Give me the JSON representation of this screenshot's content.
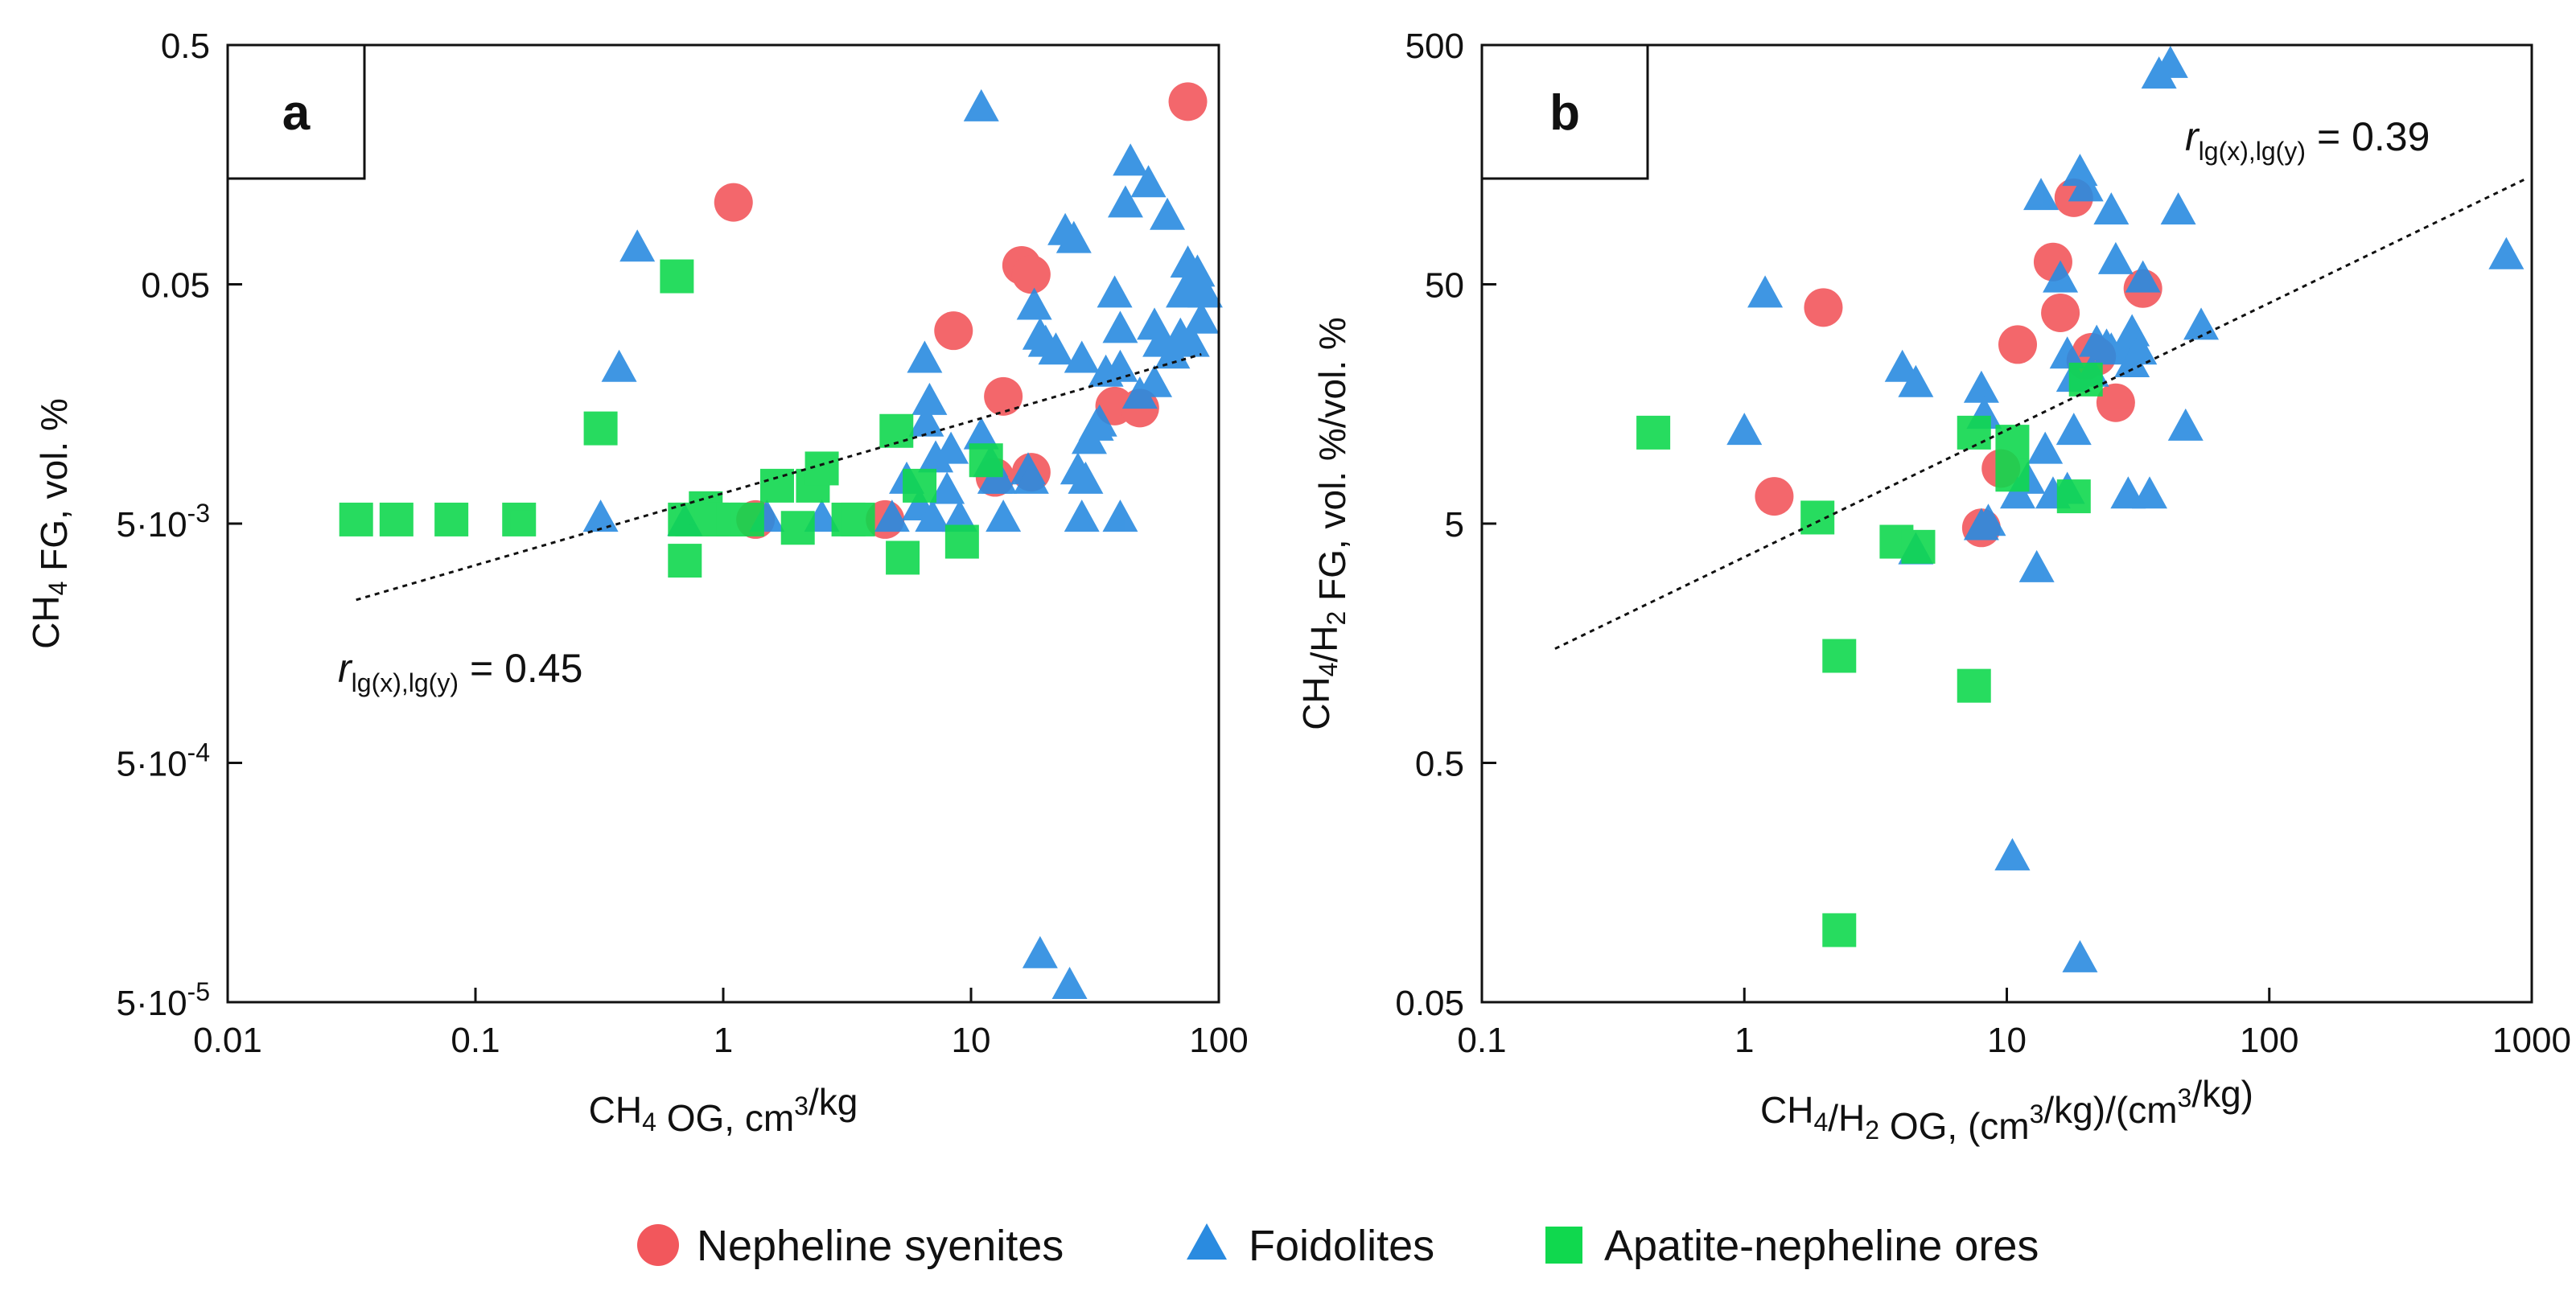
{
  "legend": [
    {
      "label": "Nepheline syenites",
      "marker": "circle",
      "color": "#f2575c"
    },
    {
      "label": "Foidolites",
      "marker": "triangle",
      "color": "#2a8be0"
    },
    {
      "label": "Apatite-nepheline ores",
      "marker": "square",
      "color": "#10d84e"
    }
  ],
  "chart_data": [
    {
      "panel": "a",
      "type": "scatter",
      "xscale": "log",
      "yscale": "log",
      "xlim": [
        0.01,
        100
      ],
      "ylim": [
        5e-05,
        0.5
      ],
      "xlabel": "CH4 OG, cm3/kg",
      "ylabel": "CH4 FG, vol. %",
      "xticks": [
        {
          "value": 0.01,
          "label": "0.01"
        },
        {
          "value": 0.1,
          "label": "0.1"
        },
        {
          "value": 1,
          "label": "1"
        },
        {
          "value": 10,
          "label": "10"
        },
        {
          "value": 100,
          "label": "100"
        }
      ],
      "yticks": [
        {
          "value": 5e-05,
          "label": "5·10-5"
        },
        {
          "value": 0.0005,
          "label": "5·10-4"
        },
        {
          "value": 0.005,
          "label": "5·10-3"
        },
        {
          "value": 0.05,
          "label": "0.05"
        },
        {
          "value": 0.5,
          "label": "0.5"
        }
      ],
      "annotation": {
        "r_label": "r",
        "r_subscript": "lg(x),lg(y)",
        "r_value": "= 0.45"
      },
      "trendline": {
        "x": [
          0.033,
          85
        ],
        "y": [
          0.0024,
          0.0255
        ]
      },
      "series": [
        {
          "name": "Nepheline syenites",
          "x": [
            1.1,
            8.5,
            16,
            17.5,
            13.5,
            4.5,
            1.35,
            12.5,
            17.5,
            38,
            48,
            75
          ],
          "y": [
            0.11,
            0.032,
            0.06,
            0.055,
            0.017,
            0.0052,
            0.0052,
            0.0078,
            0.0082,
            0.0155,
            0.0152,
            0.29
          ]
        },
        {
          "name": "Foidolites",
          "x": [
            11,
            0.45,
            0.38,
            0.32,
            0.7,
            1.5,
            2.5,
            4.8,
            6.2,
            6.6,
            7.2,
            6.5,
            6.8,
            8,
            9,
            11,
            12,
            12.5,
            13.5,
            17,
            18,
            19,
            20,
            17.5,
            22,
            24,
            26,
            27,
            28,
            29,
            30,
            32,
            35,
            38,
            40,
            42,
            44,
            48,
            52,
            55,
            58,
            62,
            65,
            70,
            72,
            75,
            78,
            80,
            82,
            85,
            88,
            55,
            40,
            33,
            13,
            7,
            5.5,
            8.3,
            19,
            25,
            28,
            40
          ],
          "y": [
            0.27,
            0.07,
            0.022,
            0.0052,
            0.005,
            0.0052,
            0.0052,
            0.0052,
            0.0058,
            0.013,
            0.0092,
            0.024,
            0.016,
            0.0068,
            0.0052,
            0.0115,
            0.0088,
            0.0075,
            0.0052,
            0.0082,
            0.04,
            0.03,
            0.028,
            0.0075,
            0.026,
            0.082,
            0.076,
            0.0082,
            0.024,
            0.0075,
            0.011,
            0.0125,
            0.021,
            0.045,
            0.032,
            0.107,
            0.16,
            0.017,
            0.13,
            0.033,
            0.028,
            0.095,
            0.025,
            0.03,
            0.045,
            0.06,
            0.028,
            0.05,
            0.055,
            0.035,
            0.045,
            0.019,
            0.022,
            0.013,
            0.0075,
            0.0052,
            0.0075,
            0.01,
            7.8e-05,
            5.8e-05,
            0.0052,
            0.0052
          ]
        },
        {
          "name": "Apatite-nepheline ores",
          "x": [
            0.033,
            0.048,
            0.08,
            0.15,
            0.32,
            0.65,
            0.7,
            0.7,
            0.75,
            0.85,
            0.9,
            1.0,
            1.1,
            1.25,
            1.65,
            2.0,
            2.3,
            2.5,
            3.2,
            3.5,
            5.0,
            5.3,
            6.2,
            9.2,
            11.5
          ],
          "y": [
            0.0052,
            0.0052,
            0.0052,
            0.0052,
            0.0125,
            0.054,
            0.0035,
            0.0052,
            0.0052,
            0.0058,
            0.0052,
            0.0052,
            0.0052,
            0.0052,
            0.0072,
            0.0048,
            0.0072,
            0.0085,
            0.0052,
            0.0052,
            0.0122,
            0.0036,
            0.0072,
            0.0042,
            0.0092
          ]
        }
      ]
    },
    {
      "panel": "b",
      "type": "scatter",
      "xscale": "log",
      "yscale": "log",
      "xlim": [
        0.1,
        1000
      ],
      "ylim": [
        0.05,
        500
      ],
      "xlabel": "CH4/H2 OG, (cm3/kg)/(cm3/kg)",
      "ylabel": "CH4/H2 FG, vol. %/vol. %",
      "xticks": [
        {
          "value": 0.1,
          "label": "0.1"
        },
        {
          "value": 1,
          "label": "1"
        },
        {
          "value": 10,
          "label": "10"
        },
        {
          "value": 100,
          "label": "100"
        },
        {
          "value": 1000,
          "label": "1000"
        }
      ],
      "yticks": [
        {
          "value": 0.05,
          "label": "0.05"
        },
        {
          "value": 0.5,
          "label": "0.5"
        },
        {
          "value": 5,
          "label": "5"
        },
        {
          "value": 50,
          "label": "50"
        },
        {
          "value": 500,
          "label": "500"
        }
      ],
      "annotation": {
        "r_label": "r",
        "r_subscript": "lg(x),lg(y)",
        "r_value": "= 0.39"
      },
      "trendline": {
        "x": [
          0.19,
          950
        ],
        "y": [
          1.5,
          138
        ]
      },
      "series": [
        {
          "name": "Nepheline syenites",
          "x": [
            2.0,
            1.3,
            8,
            9.5,
            11,
            15,
            16,
            18,
            20,
            21,
            22,
            26,
            33
          ],
          "y": [
            40,
            6.5,
            4.8,
            8.5,
            28,
            62,
            38,
            115,
            24,
            26,
            25,
            16,
            48
          ]
        },
        {
          "name": "Foidolites",
          "x": [
            1.2,
            1.0,
            4,
            4.5,
            4.5,
            8,
            8.2,
            8.5,
            10.5,
            11,
            12,
            13,
            13.5,
            14,
            15,
            16,
            17,
            17,
            18,
            18,
            19,
            20,
            21,
            22,
            24,
            25,
            25,
            26,
            28,
            29,
            30,
            30,
            32,
            33,
            35,
            38,
            42,
            45,
            48,
            55,
            800,
            10.5,
            19,
            8
          ],
          "y": [
            45,
            12,
            22,
            19,
            3.8,
            18,
            14,
            5,
            0.2,
            6.5,
            7.5,
            3.2,
            115,
            10,
            6.5,
            52,
            6.8,
            25,
            12,
            20,
            145,
            125,
            21,
            28,
            27,
            26,
            100,
            62,
            27,
            6.5,
            31,
            23,
            26,
            52,
            6.5,
            370,
            410,
            100,
            12.5,
            33,
            65,
            0.2,
            0.075,
            4.8
          ]
        },
        {
          "name": "Apatite-nepheline ores",
          "x": [
            0.45,
            1.9,
            2.3,
            2.3,
            3.8,
            4.6,
            7.5,
            7.5,
            10.5,
            10.5,
            18,
            20
          ],
          "y": [
            12,
            5.3,
            1.4,
            0.1,
            4.2,
            4.0,
            12,
            1.05,
            11,
            8,
            6.5,
            20
          ]
        }
      ]
    }
  ]
}
